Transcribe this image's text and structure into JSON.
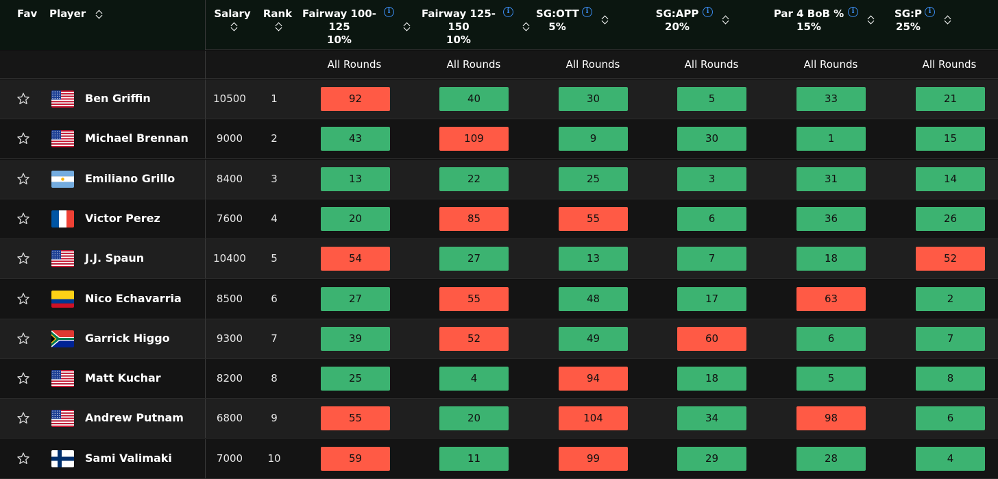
{
  "header": {
    "fav": "Fav",
    "player": "Player",
    "salary": "Salary",
    "rank": "Rank",
    "stats": [
      {
        "line1": "Fairway 100-",
        "line2": "125",
        "line3": "10%",
        "sub": "All Rounds"
      },
      {
        "line1": "Fairway 125-",
        "line2": "150",
        "line3": "10%",
        "sub": "All Rounds"
      },
      {
        "line1": "SG:OTT",
        "line2": "5%",
        "line3": "",
        "sub": "All Rounds"
      },
      {
        "line1": "SG:APP",
        "line2": "20%",
        "line3": "",
        "sub": "All Rounds"
      },
      {
        "line1": "Par 4 BoB %",
        "line2": "15%",
        "line3": "",
        "sub": "All Rounds"
      },
      {
        "line1": "SG:P",
        "line2": "25%",
        "line3": "",
        "sub": "All Rounds"
      }
    ]
  },
  "colors": {
    "good": "#3cb371",
    "bad": "#ff5a45"
  },
  "rows": [
    {
      "name": "Ben Griffin",
      "flag": "usa-flag",
      "salary": "10500",
      "rank": "1",
      "cells": [
        {
          "v": "92",
          "s": "bad"
        },
        {
          "v": "40",
          "s": "good"
        },
        {
          "v": "30",
          "s": "good"
        },
        {
          "v": "5",
          "s": "good"
        },
        {
          "v": "33",
          "s": "good"
        },
        {
          "v": "21",
          "s": "good"
        }
      ]
    },
    {
      "name": "Michael Brennan",
      "flag": "usa-flag",
      "salary": "9000",
      "rank": "2",
      "cells": [
        {
          "v": "43",
          "s": "good"
        },
        {
          "v": "109",
          "s": "bad"
        },
        {
          "v": "9",
          "s": "good"
        },
        {
          "v": "30",
          "s": "good"
        },
        {
          "v": "1",
          "s": "good"
        },
        {
          "v": "15",
          "s": "good"
        }
      ]
    },
    {
      "name": "Emiliano Grillo",
      "flag": "argentina-flag",
      "salary": "8400",
      "rank": "3",
      "cells": [
        {
          "v": "13",
          "s": "good"
        },
        {
          "v": "22",
          "s": "good"
        },
        {
          "v": "25",
          "s": "good"
        },
        {
          "v": "3",
          "s": "good"
        },
        {
          "v": "31",
          "s": "good"
        },
        {
          "v": "14",
          "s": "good"
        }
      ]
    },
    {
      "name": "Victor Perez",
      "flag": "france-flag",
      "salary": "7600",
      "rank": "4",
      "cells": [
        {
          "v": "20",
          "s": "good"
        },
        {
          "v": "85",
          "s": "bad"
        },
        {
          "v": "55",
          "s": "bad"
        },
        {
          "v": "6",
          "s": "good"
        },
        {
          "v": "36",
          "s": "good"
        },
        {
          "v": "26",
          "s": "good"
        }
      ]
    },
    {
      "name": "J.J. Spaun",
      "flag": "usa-flag",
      "salary": "10400",
      "rank": "5",
      "cells": [
        {
          "v": "54",
          "s": "bad"
        },
        {
          "v": "27",
          "s": "good"
        },
        {
          "v": "13",
          "s": "good"
        },
        {
          "v": "7",
          "s": "good"
        },
        {
          "v": "18",
          "s": "good"
        },
        {
          "v": "52",
          "s": "bad"
        }
      ]
    },
    {
      "name": "Nico Echavarria",
      "flag": "colombia-flag",
      "salary": "8500",
      "rank": "6",
      "cells": [
        {
          "v": "27",
          "s": "good"
        },
        {
          "v": "55",
          "s": "bad"
        },
        {
          "v": "48",
          "s": "good"
        },
        {
          "v": "17",
          "s": "good"
        },
        {
          "v": "63",
          "s": "bad"
        },
        {
          "v": "2",
          "s": "good"
        }
      ]
    },
    {
      "name": "Garrick Higgo",
      "flag": "south-africa-flag",
      "salary": "9300",
      "rank": "7",
      "cells": [
        {
          "v": "39",
          "s": "good"
        },
        {
          "v": "52",
          "s": "bad"
        },
        {
          "v": "49",
          "s": "good"
        },
        {
          "v": "60",
          "s": "bad"
        },
        {
          "v": "6",
          "s": "good"
        },
        {
          "v": "7",
          "s": "good"
        }
      ]
    },
    {
      "name": "Matt Kuchar",
      "flag": "usa-flag",
      "salary": "8200",
      "rank": "8",
      "cells": [
        {
          "v": "25",
          "s": "good"
        },
        {
          "v": "4",
          "s": "good"
        },
        {
          "v": "94",
          "s": "bad"
        },
        {
          "v": "18",
          "s": "good"
        },
        {
          "v": "5",
          "s": "good"
        },
        {
          "v": "8",
          "s": "good"
        }
      ]
    },
    {
      "name": "Andrew Putnam",
      "flag": "usa-flag",
      "salary": "6800",
      "rank": "9",
      "cells": [
        {
          "v": "55",
          "s": "bad"
        },
        {
          "v": "20",
          "s": "good"
        },
        {
          "v": "104",
          "s": "bad"
        },
        {
          "v": "34",
          "s": "good"
        },
        {
          "v": "98",
          "s": "bad"
        },
        {
          "v": "6",
          "s": "good"
        }
      ]
    },
    {
      "name": "Sami Valimaki",
      "flag": "finland-flag",
      "salary": "7000",
      "rank": "10",
      "cells": [
        {
          "v": "59",
          "s": "bad"
        },
        {
          "v": "11",
          "s": "good"
        },
        {
          "v": "99",
          "s": "bad"
        },
        {
          "v": "29",
          "s": "good"
        },
        {
          "v": "28",
          "s": "good"
        },
        {
          "v": "4",
          "s": "good"
        }
      ]
    }
  ]
}
